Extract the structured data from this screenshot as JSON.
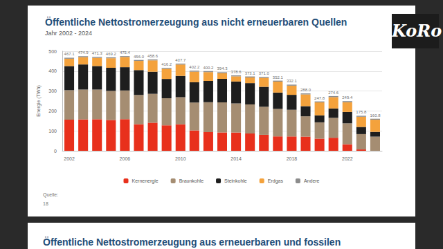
{
  "chart_data": {
    "type": "bar",
    "title": "Öffentliche Nettostromerzeugung aus nicht erneuerbaren Quellen",
    "subtitle": "Jahr 2002 - 2024",
    "y_label": "Energie (TWh)",
    "stacked": true,
    "grid": true,
    "legend": "bottom",
    "categories": [
      "2002",
      null,
      null,
      null,
      "2006",
      null,
      null,
      null,
      "2010",
      null,
      null,
      null,
      "2014",
      null,
      null,
      null,
      "2018",
      null,
      null,
      null,
      "2022",
      null,
      null
    ],
    "ylim": [
      0,
      500
    ],
    "yticks": [
      0,
      100,
      200,
      300,
      400,
      500
    ],
    "series": [
      {
        "name": "Kernenergie",
        "color": "#e8301c",
        "values": [
          156.2,
          157.4,
          158.4,
          154.6,
          158.7,
          133.2,
          140.9,
          127.7,
          133.0,
          102.3,
          94.1,
          92.1,
          91.8,
          86.8,
          80.1,
          72.2,
          71.9,
          71.1,
          60.9,
          65.4,
          32.8,
          6.7,
          0
        ]
      },
      {
        "name": "Braunkohle",
        "color": "#a58d72",
        "values": [
          148.0,
          150.0,
          149.0,
          146.0,
          144.0,
          147.0,
          145.0,
          136.0,
          136.0,
          140.0,
          150.0,
          151.0,
          146.0,
          146.0,
          141.0,
          138.0,
          134.0,
          102.0,
          82.0,
          100.0,
          105.0,
          77.0,
          71.0
        ]
      },
      {
        "name": "Steinkohle",
        "color": "#1e1e1e",
        "values": [
          121.0,
          126.0,
          118.0,
          116.0,
          117.0,
          125.0,
          111.0,
          97.0,
          107.0,
          102.0,
          107.0,
          118.0,
          110.0,
          107.0,
          100.0,
          82.0,
          75.0,
          51.0,
          35.0,
          47.0,
          57.0,
          36.0,
          24.0
        ]
      },
      {
        "name": "Erdgas",
        "color": "#f4a23c",
        "values": [
          37.0,
          36.5,
          41.0,
          48.0,
          51.0,
          46.0,
          57.0,
          51.0,
          57.0,
          53.0,
          44.0,
          28.0,
          26.0,
          28.0,
          45.0,
          55.0,
          46.0,
          59.0,
          65.0,
          57.0,
          49.0,
          51.0,
          61.0
        ]
      },
      {
        "name": "Andere",
        "color": "#8c8c8c",
        "values": [
          4.9,
          5.0,
          4.9,
          4.6,
          4.7,
          4.8,
          4.7,
          4.5,
          4.7,
          4.9,
          5.1,
          5.2,
          4.8,
          5.3,
          4.9,
          4.9,
          5.2,
          4.9,
          4.9,
          5.2,
          5.6,
          5.1,
          4.8
        ]
      }
    ],
    "totals": [
      467.1,
      474.9,
      471.3,
      469.2,
      475.4,
      456.0,
      458.6,
      416.2,
      437.7,
      402.2,
      400.2,
      394.3,
      378.6,
      373.1,
      371.0,
      352.1,
      332.1,
      288.0,
      247.8,
      274.6,
      249.4,
      175.8,
      160.8
    ],
    "total_labels": [
      "467.1",
      "474.9",
      "471.3",
      "469.2",
      "475.4",
      "456.0",
      "458.6",
      "416.2",
      "437.7",
      "402.2",
      "400.2",
      "394.3",
      "378.6",
      "373.1",
      "371.0",
      "352.1",
      "332.1",
      "288.0",
      "247.8",
      "274.6",
      "249.4",
      "175.8",
      "160.8"
    ]
  },
  "page": {
    "source": "Quelle:",
    "page_number": "18",
    "next_slide_title": "Öffentliche Nettostromerzeugung aus erneuerbaren und fossilen",
    "logo": "KoRo"
  }
}
